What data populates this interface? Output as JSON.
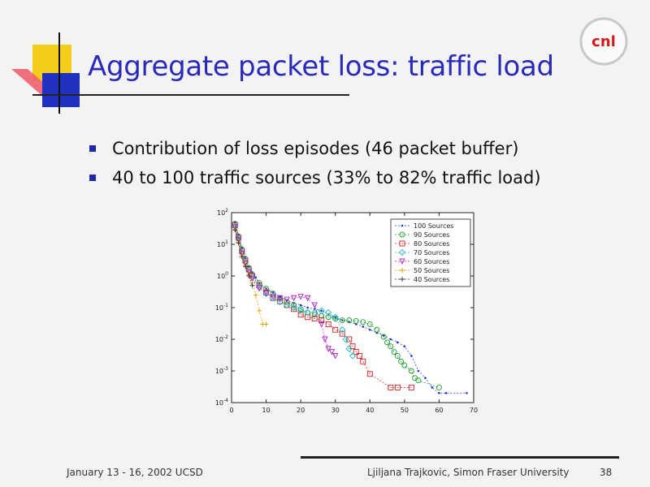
{
  "slide": {
    "title": "Aggregate packet loss: traffic load",
    "bullets": [
      "Contribution of loss episodes (46 packet buffer)",
      "40 to 100 traffic sources (33% to 82% traffic load)"
    ],
    "footer_left": "January 13 - 16, 2002 UCSD",
    "footer_right": "Ljiljana Trajkovic, Simon Fraser University",
    "page_number": "38",
    "logo_text": "cnl"
  },
  "chart_data": {
    "type": "scatter",
    "title": "",
    "xlabel": "",
    "ylabel": "",
    "xlim": [
      0,
      70
    ],
    "x_ticks": [
      "0",
      "10",
      "20",
      "30",
      "40",
      "50",
      "60",
      "70"
    ],
    "y_scale": "log",
    "ylim": [
      0.0001,
      100
    ],
    "y_ticks": [
      "10^2",
      "10^1",
      "10^0",
      "10^-1",
      "10^-2",
      "10^-3",
      "10^-4"
    ],
    "grid": false,
    "legend_position": "top-right",
    "series": [
      {
        "name": "100 Sources",
        "color": "#1a2fd0",
        "marker": "dot",
        "points": [
          [
            1,
            50
          ],
          [
            2,
            20
          ],
          [
            3,
            8
          ],
          [
            4,
            4
          ],
          [
            5,
            2
          ],
          [
            6,
            1.3
          ],
          [
            7,
            0.9
          ],
          [
            8,
            0.6
          ],
          [
            10,
            0.4
          ],
          [
            12,
            0.3
          ],
          [
            14,
            0.22
          ],
          [
            16,
            0.17
          ],
          [
            18,
            0.14
          ],
          [
            20,
            0.12
          ],
          [
            22,
            0.1
          ],
          [
            24,
            0.09
          ],
          [
            26,
            0.08
          ],
          [
            28,
            0.06
          ],
          [
            30,
            0.05
          ],
          [
            32,
            0.04
          ],
          [
            34,
            0.035
          ],
          [
            36,
            0.03
          ],
          [
            38,
            0.025
          ],
          [
            40,
            0.02
          ],
          [
            42,
            0.016
          ],
          [
            44,
            0.013
          ],
          [
            46,
            0.01
          ],
          [
            48,
            0.008
          ],
          [
            50,
            0.006
          ],
          [
            52,
            0.003
          ],
          [
            54,
            0.001
          ],
          [
            56,
            0.0006
          ],
          [
            58,
            0.0003
          ],
          [
            60,
            0.0002
          ],
          [
            62,
            0.0002
          ],
          [
            68,
            0.0002
          ]
        ]
      },
      {
        "name": "90 Sources",
        "color": "#1a9a2a",
        "marker": "circle",
        "points": [
          [
            1,
            45
          ],
          [
            2,
            18
          ],
          [
            3,
            7
          ],
          [
            4,
            3.5
          ],
          [
            5,
            1.8
          ],
          [
            6,
            1.1
          ],
          [
            8,
            0.6
          ],
          [
            10,
            0.4
          ],
          [
            12,
            0.28
          ],
          [
            14,
            0.2
          ],
          [
            16,
            0.15
          ],
          [
            18,
            0.12
          ],
          [
            20,
            0.09
          ],
          [
            22,
            0.07
          ],
          [
            24,
            0.06
          ],
          [
            26,
            0.055
          ],
          [
            28,
            0.05
          ],
          [
            30,
            0.045
          ],
          [
            32,
            0.04
          ],
          [
            34,
            0.04
          ],
          [
            36,
            0.038
          ],
          [
            38,
            0.035
          ],
          [
            40,
            0.03
          ],
          [
            42,
            0.02
          ],
          [
            44,
            0.012
          ],
          [
            45,
            0.008
          ],
          [
            46,
            0.006
          ],
          [
            47,
            0.004
          ],
          [
            48,
            0.003
          ],
          [
            49,
            0.002
          ],
          [
            50,
            0.0015
          ],
          [
            52,
            0.001
          ],
          [
            53,
            0.0006
          ],
          [
            54,
            0.0005
          ],
          [
            60,
            0.0003
          ]
        ]
      },
      {
        "name": "80 Sources",
        "color": "#d02020",
        "marker": "square",
        "points": [
          [
            1,
            40
          ],
          [
            2,
            16
          ],
          [
            3,
            6
          ],
          [
            4,
            3
          ],
          [
            5,
            1.6
          ],
          [
            6,
            1
          ],
          [
            8,
            0.5
          ],
          [
            10,
            0.3
          ],
          [
            12,
            0.2
          ],
          [
            14,
            0.16
          ],
          [
            16,
            0.12
          ],
          [
            18,
            0.09
          ],
          [
            20,
            0.06
          ],
          [
            22,
            0.05
          ],
          [
            24,
            0.045
          ],
          [
            26,
            0.04
          ],
          [
            28,
            0.03
          ],
          [
            30,
            0.02
          ],
          [
            32,
            0.015
          ],
          [
            34,
            0.01
          ],
          [
            35,
            0.006
          ],
          [
            36,
            0.004
          ],
          [
            37,
            0.003
          ],
          [
            38,
            0.002
          ],
          [
            40,
            0.0008
          ],
          [
            46,
            0.0003
          ],
          [
            48,
            0.0003
          ],
          [
            52,
            0.0003
          ]
        ]
      },
      {
        "name": "70 Sources",
        "color": "#20b8c0",
        "marker": "diamond",
        "points": [
          [
            1,
            38
          ],
          [
            2,
            15
          ],
          [
            3,
            5.5
          ],
          [
            4,
            2.8
          ],
          [
            5,
            1.5
          ],
          [
            6,
            0.9
          ],
          [
            8,
            0.45
          ],
          [
            10,
            0.28
          ],
          [
            12,
            0.2
          ],
          [
            14,
            0.15
          ],
          [
            16,
            0.12
          ],
          [
            18,
            0.1
          ],
          [
            20,
            0.08
          ],
          [
            22,
            0.07
          ],
          [
            24,
            0.07
          ],
          [
            26,
            0.08
          ],
          [
            28,
            0.07
          ],
          [
            30,
            0.05
          ],
          [
            32,
            0.02
          ],
          [
            33,
            0.01
          ],
          [
            34,
            0.005
          ],
          [
            35,
            0.003
          ]
        ]
      },
      {
        "name": "60 Sources",
        "color": "#b020c0",
        "marker": "triangle",
        "points": [
          [
            1,
            35
          ],
          [
            2,
            14
          ],
          [
            3,
            5
          ],
          [
            4,
            2.5
          ],
          [
            5,
            1.3
          ],
          [
            6,
            0.8
          ],
          [
            8,
            0.4
          ],
          [
            10,
            0.28
          ],
          [
            12,
            0.22
          ],
          [
            14,
            0.2
          ],
          [
            16,
            0.18
          ],
          [
            18,
            0.2
          ],
          [
            20,
            0.22
          ],
          [
            22,
            0.2
          ],
          [
            24,
            0.12
          ],
          [
            26,
            0.03
          ],
          [
            27,
            0.01
          ],
          [
            28,
            0.005
          ],
          [
            29,
            0.004
          ],
          [
            30,
            0.003
          ]
        ]
      },
      {
        "name": "50 Sources",
        "color": "#e0a000",
        "marker": "plus",
        "points": [
          [
            1,
            30
          ],
          [
            2,
            12
          ],
          [
            3,
            4.5
          ],
          [
            4,
            2.2
          ],
          [
            5,
            1.1
          ],
          [
            6,
            0.6
          ],
          [
            7,
            0.25
          ],
          [
            8,
            0.08
          ],
          [
            9,
            0.03
          ],
          [
            10,
            0.03
          ]
        ]
      },
      {
        "name": "40 Sources",
        "color": "#333333",
        "marker": "plus",
        "points": [
          [
            1,
            28
          ],
          [
            2,
            11
          ],
          [
            3,
            4
          ],
          [
            4,
            2
          ],
          [
            5,
            1
          ],
          [
            6,
            0.5
          ]
        ]
      }
    ]
  }
}
